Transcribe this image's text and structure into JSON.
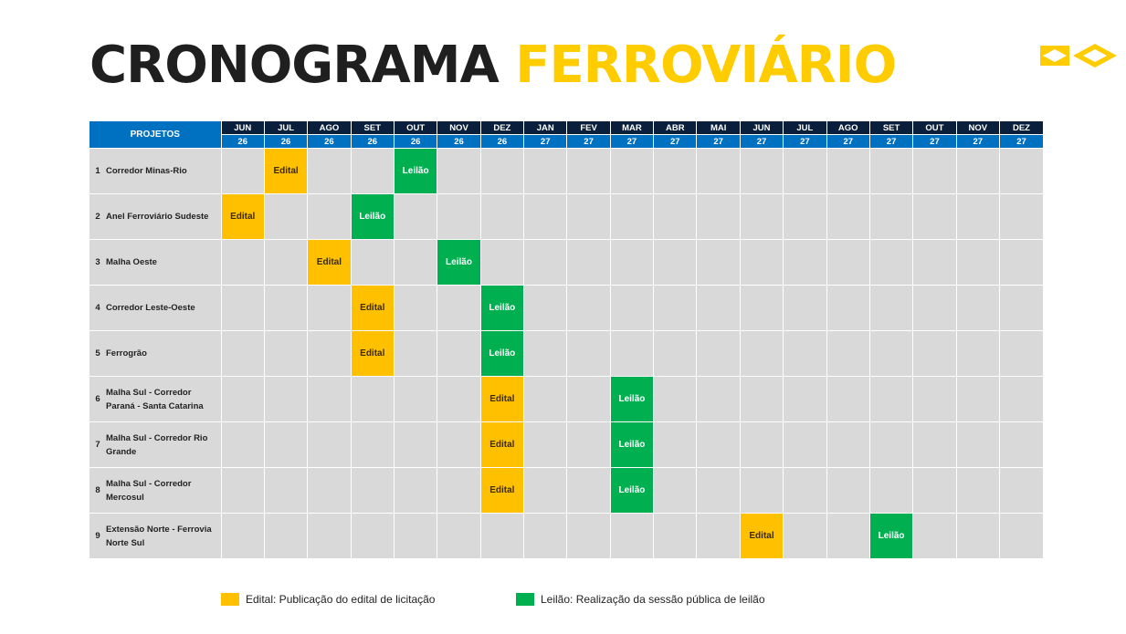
{
  "title": {
    "part1": "CRONOGRAMA",
    "part2": "FERROVIÁRIO"
  },
  "colors": {
    "edital": "#ffc000",
    "leilao": "#00b050",
    "header_month": "#0a1f3b",
    "header_blue": "#0070c0",
    "title_accent": "#ffcc00"
  },
  "logo_icon": "brazil-flag-diamonds-icon",
  "table": {
    "projects_header": "PROJETOS",
    "months": [
      {
        "m": "JUN",
        "y": "26"
      },
      {
        "m": "JUL",
        "y": "26"
      },
      {
        "m": "AGO",
        "y": "26"
      },
      {
        "m": "SET",
        "y": "26"
      },
      {
        "m": "OUT",
        "y": "26"
      },
      {
        "m": "NOV",
        "y": "26"
      },
      {
        "m": "DEZ",
        "y": "26"
      },
      {
        "m": "JAN",
        "y": "27"
      },
      {
        "m": "FEV",
        "y": "27"
      },
      {
        "m": "MAR",
        "y": "27"
      },
      {
        "m": "ABR",
        "y": "27"
      },
      {
        "m": "MAI",
        "y": "27"
      },
      {
        "m": "JUN",
        "y": "27"
      },
      {
        "m": "JUL",
        "y": "27"
      },
      {
        "m": "AGO",
        "y": "27"
      },
      {
        "m": "SET",
        "y": "27"
      },
      {
        "m": "OUT",
        "y": "27"
      },
      {
        "m": "NOV",
        "y": "27"
      },
      {
        "m": "DEZ",
        "y": "27"
      }
    ],
    "rows": [
      {
        "num": "1",
        "name": "Corredor Minas-Rio",
        "edital": 1,
        "leilao": 4
      },
      {
        "num": "2",
        "name": "Anel Ferroviário Sudeste",
        "edital": 0,
        "leilao": 3
      },
      {
        "num": "3",
        "name": "Malha Oeste",
        "edital": 2,
        "leilao": 5
      },
      {
        "num": "4",
        "name": "Corredor Leste-Oeste",
        "edital": 3,
        "leilao": 6
      },
      {
        "num": "5",
        "name": "Ferrogrão",
        "edital": 3,
        "leilao": 6
      },
      {
        "num": "6",
        "name": "Malha Sul - Corredor Paraná - Santa Catarina",
        "edital": 6,
        "leilao": 9
      },
      {
        "num": "7",
        "name": "Malha Sul - Corredor Rio Grande",
        "edital": 6,
        "leilao": 9
      },
      {
        "num": "8",
        "name": "Malha Sul - Corredor Mercosul",
        "edital": 6,
        "leilao": 9
      },
      {
        "num": "9",
        "name": "Extensão Norte - Ferrovia Norte Sul",
        "edital": 12,
        "leilao": 15
      }
    ],
    "edital_label": "Edital",
    "leilao_label": "Leilão"
  },
  "legend": {
    "edital": "Edital: Publicação do edital de licitação",
    "leilao": "Leilão: Realização da sessão pública de leilão"
  }
}
